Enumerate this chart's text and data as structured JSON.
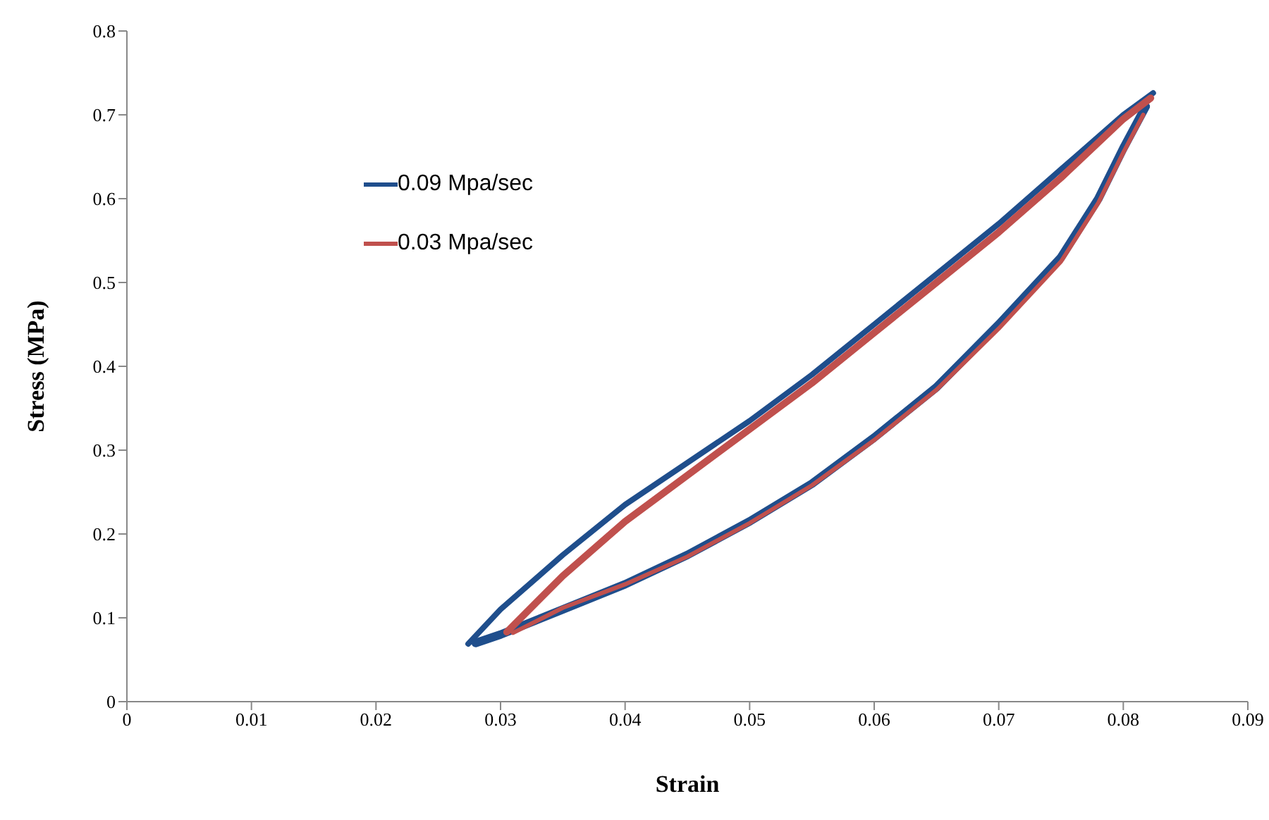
{
  "chart_data": {
    "type": "line",
    "xlabel": "Strain",
    "ylabel": "Stress (MPa)",
    "xlim": [
      0,
      0.09
    ],
    "xticks": [
      0,
      0.01,
      0.02,
      0.03,
      0.04,
      0.05,
      0.06,
      0.07,
      0.08,
      0.09
    ],
    "ylim": [
      0,
      0.8
    ],
    "yticks": [
      0,
      0.1,
      0.2,
      0.3,
      0.4,
      0.5,
      0.6,
      0.7,
      0.8
    ],
    "grid": false,
    "legend": "top left",
    "marker": "none",
    "line_style": "solid",
    "series": [
      {
        "name": "0.09 Mpa/sec",
        "color": "#1f4e8c",
        "x": [
          0.0274,
          0.03,
          0.035,
          0.04,
          0.045,
          0.05,
          0.055,
          0.06,
          0.065,
          0.07,
          0.075,
          0.08,
          0.0824
        ],
        "values": [
          0.069,
          0.11,
          0.175,
          0.235,
          0.285,
          0.335,
          0.39,
          0.45,
          0.51,
          0.57,
          0.635,
          0.7,
          0.726
        ]
      },
      {
        "color": "#1f4e8c",
        "x": [
          0.028,
          0.03,
          0.035,
          0.04,
          0.045,
          0.05,
          0.055,
          0.06,
          0.065,
          0.07,
          0.075,
          0.078,
          0.08,
          0.0818
        ],
        "values": [
          0.07,
          0.08,
          0.11,
          0.14,
          0.175,
          0.215,
          0.26,
          0.315,
          0.375,
          0.45,
          0.53,
          0.6,
          0.66,
          0.71
        ]
      },
      {
        "name": "0.03 Mpa/sec",
        "color": "#c0504d",
        "x": [
          0.0305,
          0.035,
          0.04,
          0.045,
          0.05,
          0.055,
          0.06,
          0.065,
          0.07,
          0.075,
          0.08,
          0.0822
        ],
        "values": [
          0.083,
          0.15,
          0.215,
          0.27,
          0.325,
          0.38,
          0.44,
          0.5,
          0.56,
          0.625,
          0.695,
          0.72
        ]
      },
      {
        "color": "#c0504d",
        "x": [
          0.031,
          0.035,
          0.04,
          0.045,
          0.05,
          0.055,
          0.06,
          0.065,
          0.07,
          0.075,
          0.078,
          0.08,
          0.0816
        ],
        "values": [
          0.082,
          0.112,
          0.14,
          0.173,
          0.213,
          0.258,
          0.312,
          0.372,
          0.445,
          0.525,
          0.595,
          0.655,
          0.7
        ]
      }
    ]
  }
}
